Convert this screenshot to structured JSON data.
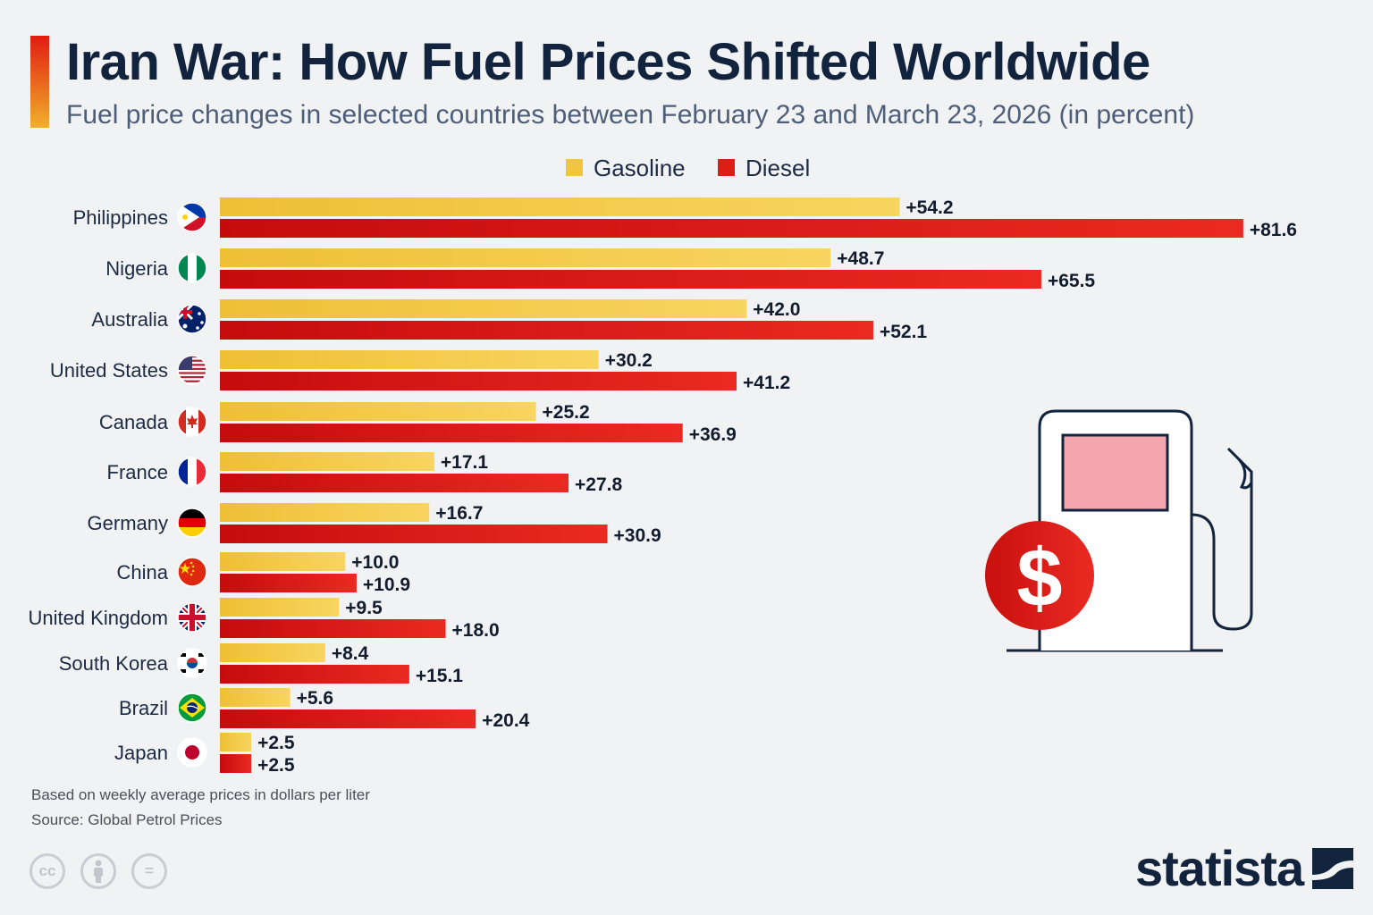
{
  "header": {
    "title": "Iran War: How Fuel Prices Shifted Worldwide",
    "subtitle": "Fuel price changes in selected countries between February 23 and March 23, 2026 (in percent)"
  },
  "colors": {
    "gasoline": "#f2c53e",
    "diesel": "#dc1f15",
    "title": "#12233d"
  },
  "chart_data": {
    "type": "bar",
    "orientation": "horizontal",
    "title": "Iran War: How Fuel Prices Shifted Worldwide",
    "subtitle": "Fuel price changes in selected countries between February 23 and March 23, 2026 (in percent)",
    "xlabel": "",
    "ylabel": "",
    "xlim": [
      0,
      85
    ],
    "grid": false,
    "legend_position": "top-center",
    "categories": [
      "Philippines",
      "Nigeria",
      "Australia",
      "United States",
      "Canada",
      "France",
      "Germany",
      "China",
      "United Kingdom",
      "South Korea",
      "Brazil",
      "Japan"
    ],
    "series": [
      {
        "name": "Gasoline",
        "values": [
          54.2,
          48.7,
          42.0,
          30.2,
          25.2,
          17.1,
          16.7,
          10.0,
          9.5,
          8.4,
          5.6,
          2.5
        ],
        "labels": [
          "+54.2",
          "+48.7",
          "+42.0",
          "+30.2",
          "+25.2",
          "+17.1",
          "+16.7",
          "+10.0",
          "+9.5",
          "+8.4",
          "+5.6",
          "+2.5"
        ]
      },
      {
        "name": "Diesel",
        "values": [
          81.6,
          65.5,
          52.1,
          41.2,
          36.9,
          27.8,
          30.9,
          10.9,
          18.0,
          15.1,
          20.4,
          2.5
        ],
        "labels": [
          "+81.6",
          "+65.5",
          "+52.1",
          "+41.2",
          "+36.9",
          "+27.8",
          "+30.9",
          "+10.9",
          "+18.0",
          "+15.1",
          "+20.4",
          "+2.5"
        ]
      }
    ]
  },
  "icons": {
    "flags": [
      "philippines-flag-icon",
      "nigeria-flag-icon",
      "australia-flag-icon",
      "united-states-flag-icon",
      "canada-flag-icon",
      "france-flag-icon",
      "germany-flag-icon",
      "china-flag-icon",
      "united-kingdom-flag-icon",
      "south-korea-flag-icon",
      "brazil-flag-icon",
      "japan-flag-icon"
    ],
    "illustration": "fuel-pump-dollar-icon"
  },
  "footer": {
    "note": "Based on weekly average prices in dollars per liter",
    "source": "Source: Global Petrol Prices",
    "license": {
      "cc": "cc",
      "nd": "="
    },
    "brand": "statista"
  }
}
